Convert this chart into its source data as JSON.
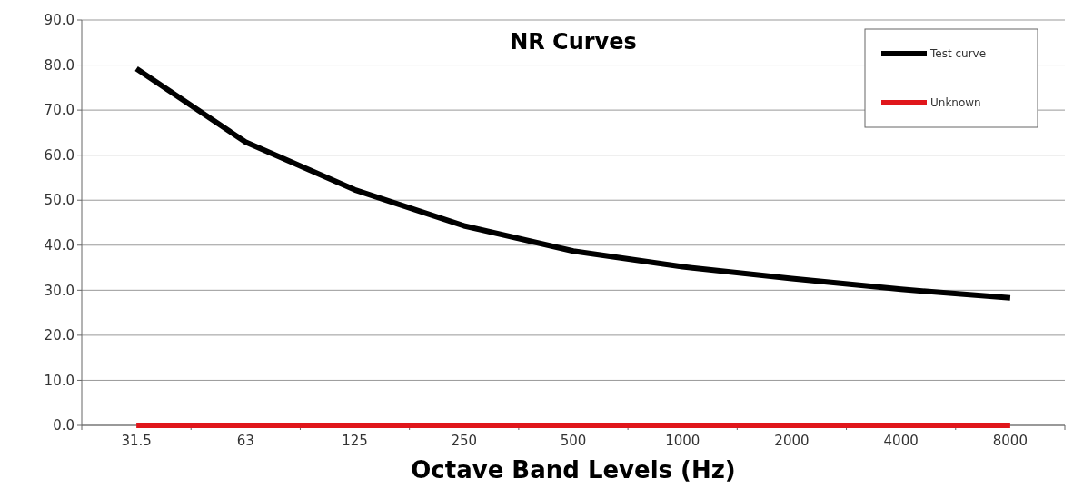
{
  "chart_data": {
    "type": "line",
    "title": "NR Curves",
    "xlabel": "Octave Band Levels (Hz)",
    "categories": [
      "31.5",
      "63",
      "125",
      "250",
      "500",
      "1000",
      "2000",
      "4000",
      "8000"
    ],
    "series": [
      {
        "name": "Test curve",
        "color": "#000000",
        "values": [
          79.2,
          62.9,
          52.3,
          44.3,
          38.7,
          35.2,
          32.6,
          30.2,
          28.3
        ]
      },
      {
        "name": "Unknown",
        "color": "#e0161b",
        "values": [
          0,
          0,
          0,
          0,
          0,
          0,
          0,
          0,
          0
        ]
      }
    ],
    "ylim": [
      0,
      90
    ],
    "yticks": [
      {
        "value": 0,
        "label": "0.0"
      },
      {
        "value": 10,
        "label": "10.0"
      },
      {
        "value": 20,
        "label": "20.0"
      },
      {
        "value": 30,
        "label": "30.0"
      },
      {
        "value": 40,
        "label": "40.0"
      },
      {
        "value": 50,
        "label": "50.0"
      },
      {
        "value": 60,
        "label": "60.0"
      },
      {
        "value": 70,
        "label": "70.0"
      },
      {
        "value": 80,
        "label": "80.0"
      },
      {
        "value": 90,
        "label": "90.0"
      }
    ],
    "grid": "y",
    "legend": "top right",
    "marker": "none",
    "line_style": "solid"
  }
}
